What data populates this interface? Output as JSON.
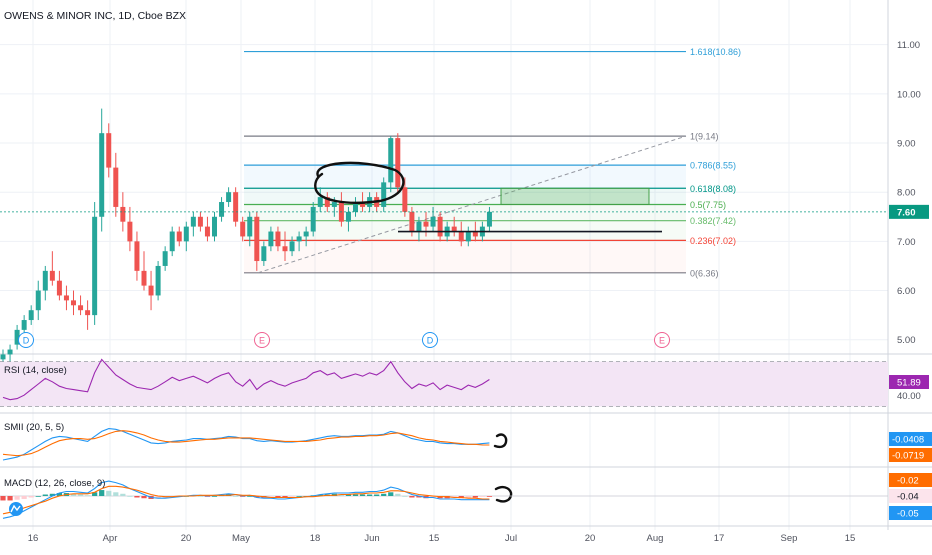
{
  "header": {
    "title": "OWENS & MINOR INC, 1D, Cboe BZX"
  },
  "colors": {
    "up": "#26a69a",
    "down": "#ef5350",
    "grid": "#eef1f6",
    "axis": "#50535e",
    "fib_blue": "#2f9fd8",
    "fib_green": "#4caf50",
    "fib_red": "#f44336",
    "fib_gray": "#787b86",
    "fib_teal": "#009688",
    "rsi": "#9c27b0",
    "rsi_band": "#f3e5f5",
    "smi_blue": "#2196f3",
    "smi_orange": "#ff6d00",
    "price_green": "#089981"
  },
  "chart_data": [
    {
      "type": "candlestick",
      "ylim": [
        4.75,
        11.4
      ],
      "y_ticks": [
        "11.00",
        "10.00",
        "9.00",
        "8.00",
        "7.00",
        "6.00",
        "5.00"
      ],
      "x_ticks": [
        "16",
        "Apr",
        "20",
        "May",
        "18",
        "Jun",
        "15",
        "Jul",
        "20",
        "Aug",
        "17",
        "Sep",
        "15"
      ],
      "last_price": "7.60",
      "ohlc": [
        [
          4.6,
          4.8,
          4.5,
          4.7
        ],
        [
          4.7,
          4.9,
          4.5,
          4.8
        ],
        [
          4.9,
          5.3,
          4.8,
          5.2
        ],
        [
          5.2,
          5.5,
          5.1,
          5.4
        ],
        [
          5.4,
          5.7,
          5.3,
          5.6
        ],
        [
          5.6,
          6.2,
          5.4,
          6.0
        ],
        [
          6.0,
          6.5,
          5.8,
          6.4
        ],
        [
          6.4,
          6.8,
          6.1,
          6.2
        ],
        [
          6.2,
          6.4,
          5.8,
          5.9
        ],
        [
          5.9,
          6.1,
          5.6,
          5.8
        ],
        [
          5.8,
          6.0,
          5.5,
          5.7
        ],
        [
          5.7,
          5.9,
          5.5,
          5.6
        ],
        [
          5.6,
          5.8,
          5.2,
          5.5
        ],
        [
          5.5,
          7.8,
          5.3,
          7.5
        ],
        [
          7.5,
          9.7,
          7.2,
          9.2
        ],
        [
          9.2,
          9.4,
          8.3,
          8.5
        ],
        [
          8.5,
          8.8,
          7.5,
          7.7
        ],
        [
          7.7,
          8.0,
          7.2,
          7.4
        ],
        [
          7.4,
          7.7,
          6.8,
          7.0
        ],
        [
          7.0,
          7.2,
          6.2,
          6.4
        ],
        [
          6.4,
          6.8,
          6.0,
          6.1
        ],
        [
          6.1,
          6.4,
          5.6,
          5.9
        ],
        [
          5.9,
          6.6,
          5.8,
          6.5
        ],
        [
          6.5,
          6.9,
          6.4,
          6.8
        ],
        [
          6.8,
          7.3,
          6.7,
          7.2
        ],
        [
          7.2,
          7.3,
          6.9,
          7.0
        ],
        [
          7.0,
          7.4,
          6.8,
          7.3
        ],
        [
          7.3,
          7.6,
          7.1,
          7.5
        ],
        [
          7.5,
          7.6,
          7.2,
          7.3
        ],
        [
          7.3,
          7.5,
          7.0,
          7.1
        ],
        [
          7.1,
          7.6,
          7.0,
          7.5
        ],
        [
          7.5,
          7.9,
          7.4,
          7.8
        ],
        [
          7.8,
          8.1,
          7.7,
          8.0
        ],
        [
          8.0,
          8.1,
          7.3,
          7.4
        ],
        [
          7.4,
          7.5,
          7.0,
          7.1
        ],
        [
          7.1,
          7.6,
          6.9,
          7.5
        ],
        [
          7.5,
          7.6,
          6.4,
          6.6
        ],
        [
          6.6,
          7.0,
          6.5,
          6.9
        ],
        [
          6.9,
          7.3,
          6.8,
          7.2
        ],
        [
          7.2,
          7.3,
          6.8,
          6.9
        ],
        [
          6.9,
          7.2,
          6.6,
          6.8
        ],
        [
          6.8,
          7.1,
          6.7,
          7.0
        ],
        [
          7.0,
          7.2,
          6.8,
          7.1
        ],
        [
          7.1,
          7.3,
          6.9,
          7.2
        ],
        [
          7.2,
          7.8,
          7.1,
          7.7
        ],
        [
          7.7,
          8.1,
          7.6,
          7.9
        ],
        [
          7.9,
          8.0,
          7.6,
          7.7
        ],
        [
          7.7,
          7.9,
          7.5,
          7.8
        ],
        [
          7.8,
          8.0,
          7.3,
          7.4
        ],
        [
          7.4,
          7.7,
          7.2,
          7.6
        ],
        [
          7.6,
          7.9,
          7.5,
          7.8
        ],
        [
          7.8,
          8.0,
          7.6,
          7.7
        ],
        [
          7.7,
          8.0,
          7.6,
          7.9
        ],
        [
          7.9,
          8.0,
          7.6,
          7.7
        ],
        [
          7.7,
          8.3,
          7.6,
          8.2
        ],
        [
          8.2,
          9.14,
          8.0,
          9.1
        ],
        [
          9.1,
          9.2,
          8.0,
          8.1
        ],
        [
          8.1,
          8.3,
          7.5,
          7.6
        ],
        [
          7.6,
          7.7,
          7.1,
          7.2
        ],
        [
          7.2,
          7.5,
          7.0,
          7.4
        ],
        [
          7.4,
          7.6,
          7.1,
          7.3
        ],
        [
          7.3,
          7.7,
          7.2,
          7.5
        ],
        [
          7.5,
          7.6,
          7.0,
          7.1
        ],
        [
          7.1,
          7.4,
          7.0,
          7.3
        ],
        [
          7.3,
          7.5,
          7.1,
          7.2
        ],
        [
          7.2,
          7.4,
          6.9,
          7.0
        ],
        [
          7.0,
          7.3,
          6.9,
          7.2
        ],
        [
          7.2,
          7.4,
          7.0,
          7.1
        ],
        [
          7.1,
          7.4,
          7.0,
          7.3
        ],
        [
          7.3,
          7.7,
          7.2,
          7.6
        ]
      ],
      "fib_levels": [
        {
          "label": "1.618(10.86)",
          "price": 10.86,
          "color": "#2f9fd8"
        },
        {
          "label": "1(9.14)",
          "price": 9.14,
          "color": "#787b86"
        },
        {
          "label": "0.786(8.55)",
          "price": 8.55,
          "color": "#2f9fd8"
        },
        {
          "label": "0.618(8.08)",
          "price": 8.08,
          "color": "#009688"
        },
        {
          "label": "0.5(7.75)",
          "price": 7.75,
          "color": "#4caf50"
        },
        {
          "label": "0.382(7.42)",
          "price": 7.42,
          "color": "#66bb6a"
        },
        {
          "label": "0.236(7.02)",
          "price": 7.02,
          "color": "#f44336"
        },
        {
          "label": "0(6.36)",
          "price": 6.36,
          "color": "#787b86"
        }
      ],
      "events": [
        "D",
        "E",
        "D",
        "E"
      ]
    },
    {
      "type": "line",
      "title": "RSI (14, close)",
      "ylim": [
        25,
        75
      ],
      "y_ticks": [
        "40.00"
      ],
      "band": [
        30,
        70
      ],
      "last_value": "51.89",
      "values": [
        38,
        36,
        37,
        40,
        45,
        50,
        55,
        52,
        48,
        46,
        45,
        44,
        43,
        60,
        72,
        65,
        58,
        54,
        50,
        47,
        46,
        45,
        48,
        52,
        56,
        53,
        55,
        57,
        54,
        51,
        55,
        58,
        60,
        52,
        48,
        54,
        45,
        50,
        53,
        50,
        48,
        51,
        53,
        55,
        60,
        62,
        58,
        60,
        55,
        57,
        59,
        57,
        60,
        58,
        62,
        70,
        60,
        52,
        46,
        50,
        48,
        51,
        45,
        49,
        47,
        45,
        49,
        47,
        50,
        54
      ]
    },
    {
      "type": "line",
      "title": "SMII (20, 5, 5)",
      "ylim": [
        -0.35,
        0.35
      ],
      "last_values": [
        "-0.0408",
        "-0.0719"
      ],
      "series": [
        {
          "values": [
            -0.28,
            -0.26,
            -0.24,
            -0.2,
            -0.14,
            -0.08,
            -0.02,
            0.03,
            0.05,
            0.04,
            0.02,
            0.0,
            -0.02,
            0.05,
            0.12,
            0.16,
            0.15,
            0.12,
            0.08,
            0.04,
            0.0,
            -0.04,
            -0.05,
            -0.04,
            -0.02,
            -0.01,
            0.0,
            0.02,
            0.02,
            0.01,
            0.02,
            0.03,
            0.05,
            0.04,
            0.02,
            0.02,
            -0.01,
            -0.02,
            -0.01,
            -0.02,
            -0.03,
            -0.03,
            -0.02,
            -0.01,
            0.01,
            0.03,
            0.05,
            0.06,
            0.05,
            0.05,
            0.06,
            0.06,
            0.07,
            0.07,
            0.08,
            0.12,
            0.1,
            0.06,
            0.02,
            0.0,
            -0.02,
            -0.02,
            -0.04,
            -0.05,
            -0.05,
            -0.06,
            -0.06,
            -0.06,
            -0.05,
            -0.04
          ]
        },
        {
          "values": [
            -0.2,
            -0.21,
            -0.22,
            -0.21,
            -0.19,
            -0.15,
            -0.1,
            -0.05,
            -0.01,
            0.01,
            0.02,
            0.02,
            0.01,
            0.02,
            0.05,
            0.09,
            0.12,
            0.13,
            0.12,
            0.1,
            0.07,
            0.03,
            0.0,
            -0.02,
            -0.03,
            -0.03,
            -0.02,
            -0.01,
            0.0,
            0.01,
            0.01,
            0.02,
            0.03,
            0.03,
            0.03,
            0.03,
            0.02,
            0.01,
            0.0,
            -0.01,
            -0.02,
            -0.02,
            -0.02,
            -0.02,
            -0.01,
            0.0,
            0.02,
            0.03,
            0.04,
            0.04,
            0.05,
            0.05,
            0.06,
            0.06,
            0.07,
            0.09,
            0.1,
            0.08,
            0.06,
            0.03,
            0.01,
            0.0,
            -0.02,
            -0.03,
            -0.04,
            -0.05,
            -0.06,
            -0.06,
            -0.07,
            -0.07
          ]
        }
      ]
    },
    {
      "type": "bar",
      "title": "MACD (12, 26, close, 9)",
      "ylim": [
        -0.35,
        0.35
      ],
      "last_values": [
        "-0.02",
        "-0.04",
        "-0.05"
      ],
      "histogram": [
        -0.06,
        -0.06,
        -0.05,
        -0.04,
        -0.02,
        0.0,
        0.02,
        0.03,
        0.04,
        0.04,
        0.03,
        0.02,
        0.01,
        0.05,
        0.08,
        0.07,
        0.05,
        0.03,
        0.0,
        -0.02,
        -0.03,
        -0.04,
        -0.03,
        -0.02,
        -0.01,
        -0.01,
        0.0,
        0.01,
        0.0,
        -0.01,
        0.0,
        0.01,
        0.02,
        0.0,
        -0.01,
        0.0,
        -0.02,
        -0.02,
        -0.01,
        -0.02,
        -0.02,
        -0.01,
        0.0,
        0.0,
        0.01,
        0.02,
        0.02,
        0.03,
        0.02,
        0.02,
        0.02,
        0.02,
        0.02,
        0.02,
        0.03,
        0.05,
        0.03,
        0.0,
        -0.02,
        -0.02,
        -0.03,
        -0.02,
        -0.03,
        -0.03,
        -0.02,
        -0.03,
        -0.02,
        -0.02,
        -0.01,
        -0.01
      ],
      "series": [
        {
          "values": [
            -0.3,
            -0.28,
            -0.25,
            -0.2,
            -0.15,
            -0.1,
            -0.05,
            0.0,
            0.04,
            0.06,
            0.06,
            0.05,
            0.04,
            0.1,
            0.18,
            0.2,
            0.18,
            0.15,
            0.1,
            0.06,
            0.02,
            -0.02,
            -0.03,
            -0.03,
            -0.02,
            -0.01,
            0.0,
            0.01,
            0.01,
            0.0,
            0.01,
            0.02,
            0.03,
            0.02,
            0.0,
            0.01,
            -0.02,
            -0.03,
            -0.03,
            -0.04,
            -0.04,
            -0.03,
            -0.02,
            -0.01,
            0.0,
            0.02,
            0.03,
            0.04,
            0.04,
            0.04,
            0.05,
            0.05,
            0.06,
            0.06,
            0.08,
            0.12,
            0.1,
            0.06,
            0.02,
            0.0,
            -0.02,
            -0.02,
            -0.04,
            -0.04,
            -0.04,
            -0.05,
            -0.05,
            -0.05,
            -0.05,
            -0.05
          ]
        },
        {
          "values": [
            -0.24,
            -0.22,
            -0.2,
            -0.16,
            -0.13,
            -0.1,
            -0.07,
            -0.03,
            0.0,
            0.02,
            0.03,
            0.03,
            0.03,
            0.05,
            0.1,
            0.13,
            0.13,
            0.12,
            0.1,
            0.08,
            0.05,
            0.02,
            0.0,
            -0.01,
            -0.01,
            0.0,
            0.0,
            0.0,
            0.01,
            0.01,
            0.01,
            0.01,
            0.01,
            0.02,
            0.01,
            0.01,
            0.0,
            -0.01,
            -0.02,
            -0.02,
            -0.02,
            -0.02,
            -0.02,
            -0.01,
            -0.01,
            0.0,
            0.01,
            0.01,
            0.02,
            0.02,
            0.03,
            0.03,
            0.04,
            0.04,
            0.05,
            0.07,
            0.07,
            0.06,
            0.04,
            0.02,
            0.01,
            0.0,
            -0.01,
            -0.01,
            -0.02,
            -0.02,
            -0.03,
            -0.03,
            -0.04,
            -0.04
          ]
        }
      ]
    }
  ]
}
